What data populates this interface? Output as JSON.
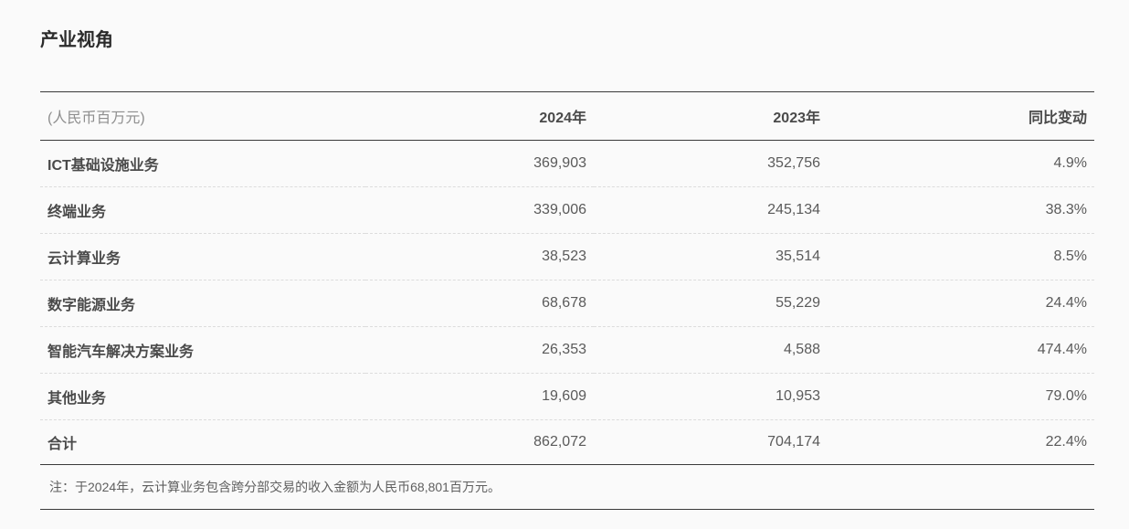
{
  "page": {
    "title": "产业视角",
    "background_color": "#fafafa",
    "rule_color": "#3a3a3a",
    "dashed_rule_color": "#dcdcdc"
  },
  "table": {
    "unit_label": "(人民币百万元)",
    "columns": [
      "2024年",
      "2023年",
      "同比变动"
    ],
    "rows": [
      {
        "label": "ICT基础设施业务",
        "y2024": "369,903",
        "y2023": "352,756",
        "yoy": "4.9%"
      },
      {
        "label": "终端业务",
        "y2024": "339,006",
        "y2023": "245,134",
        "yoy": "38.3%"
      },
      {
        "label": "云计算业务",
        "y2024": "38,523",
        "y2023": "35,514",
        "yoy": "8.5%"
      },
      {
        "label": "数字能源业务",
        "y2024": "68,678",
        "y2023": "55,229",
        "yoy": "24.4%"
      },
      {
        "label": "智能汽车解决方案业务",
        "y2024": "26,353",
        "y2023": "4,588",
        "yoy": "474.4%"
      },
      {
        "label": "其他业务",
        "y2024": "19,609",
        "y2023": "10,953",
        "yoy": "79.0%"
      }
    ],
    "total": {
      "label": "合计",
      "y2024": "862,072",
      "y2023": "704,174",
      "yoy": "22.4%"
    },
    "footnote": "注：于2024年，云计算业务包含跨分部交易的收入金额为人民币68,801百万元。"
  }
}
